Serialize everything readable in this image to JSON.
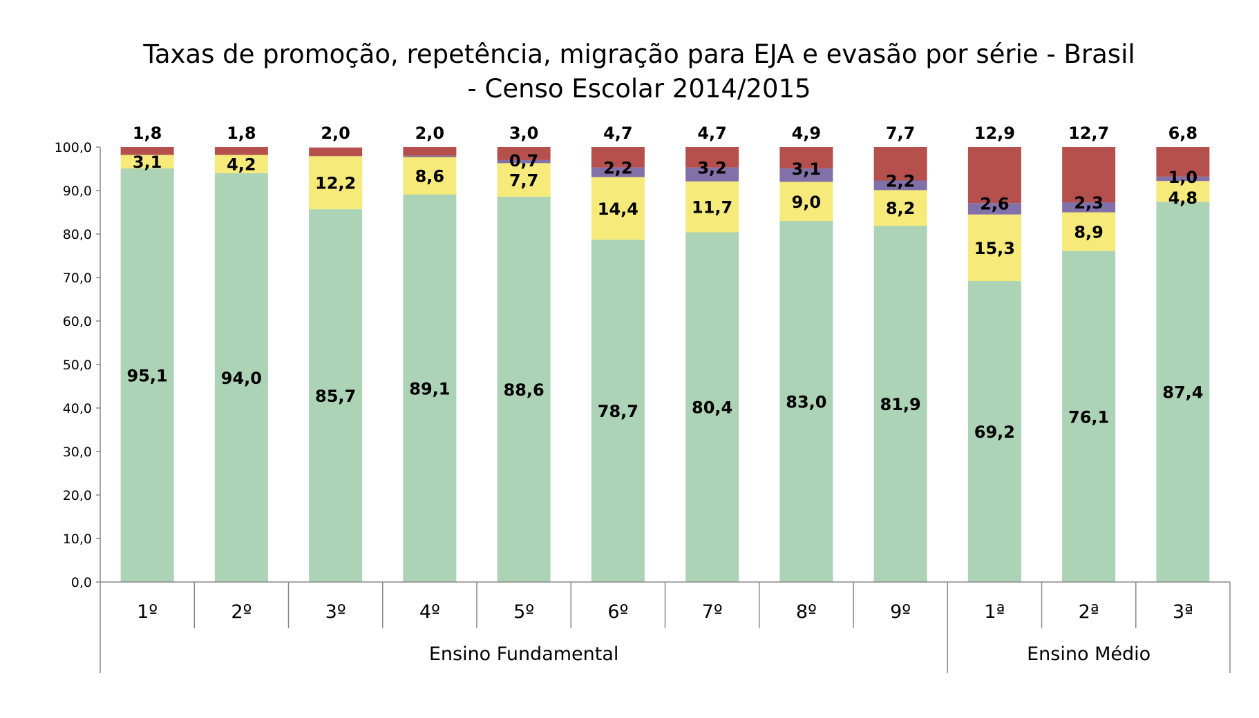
{
  "chart_data": {
    "type": "bar",
    "stacked": true,
    "title_lines": [
      "Taxas de promoção, repetência, migração para EJA e evasão por série - Brasil",
      "- Censo Escolar 2014/2015"
    ],
    "ylim": [
      0,
      100
    ],
    "yticks": [
      "0,0",
      "10,0",
      "20,0",
      "30,0",
      "40,0",
      "50,0",
      "60,0",
      "70,0",
      "80,0",
      "90,0",
      "100,0"
    ],
    "grid": false,
    "categories": [
      "1º",
      "2º",
      "3º",
      "4º",
      "5º",
      "6º",
      "7º",
      "8º",
      "9º",
      "1ª",
      "2ª",
      "3ª"
    ],
    "groups": [
      {
        "label": "Ensino Fundamental",
        "start": 0,
        "end": 8
      },
      {
        "label": "Ensino Médio",
        "start": 9,
        "end": 11
      }
    ],
    "series": [
      {
        "key": "promocao",
        "color": "#acd3b6",
        "values": [
          95.1,
          94.0,
          85.7,
          89.1,
          88.6,
          78.7,
          80.4,
          83.0,
          81.9,
          69.2,
          76.1,
          87.4
        ],
        "labels": [
          "95,1",
          "94,0",
          "85,7",
          "89,1",
          "88,6",
          "78,7",
          "80,4",
          "83,0",
          "81,9",
          "69,2",
          "76,1",
          "87,4"
        ]
      },
      {
        "key": "repetencia",
        "color": "#f5ea7a",
        "values": [
          3.1,
          4.2,
          12.2,
          8.6,
          7.7,
          14.4,
          11.7,
          9.0,
          8.2,
          15.3,
          8.9,
          4.8
        ],
        "labels": [
          "3,1",
          "4,2",
          "12,2",
          "8,6",
          "7,7",
          "14,4",
          "11,7",
          "9,0",
          "8,2",
          "15,3",
          "8,9",
          "4,8"
        ]
      },
      {
        "key": "migracao_eja",
        "color": "#8270a8",
        "values": [
          0.0,
          0.0,
          0.0,
          0.3,
          0.7,
          2.2,
          3.2,
          3.1,
          2.2,
          2.6,
          2.3,
          1.0
        ],
        "labels": [
          "",
          "",
          "",
          "",
          "0,7",
          "2,2",
          "3,2",
          "3,1",
          "2,2",
          "2,6",
          "2,3",
          "1,0"
        ]
      },
      {
        "key": "evasao",
        "color": "#b5504d",
        "values": [
          1.8,
          1.8,
          2.0,
          2.0,
          3.0,
          4.7,
          4.7,
          4.9,
          7.7,
          12.9,
          12.7,
          6.8
        ],
        "labels": [
          "1,8",
          "1,8",
          "2,0",
          "2,0",
          "3,0",
          "4,7",
          "4,7",
          "4,9",
          "7,7",
          "12,9",
          "12,7",
          "6,8"
        ]
      }
    ]
  }
}
